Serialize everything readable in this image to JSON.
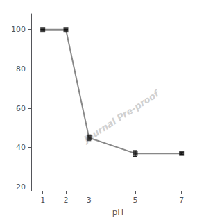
{
  "chart_data": {
    "type": "line",
    "x": [
      1,
      2,
      3,
      5,
      7
    ],
    "xlabel": "pH",
    "xlim": [
      0.5,
      8
    ],
    "xticks": [
      1,
      2,
      3,
      5,
      7
    ],
    "ylim": [
      18,
      108
    ],
    "yticks": [
      20,
      40,
      60,
      80,
      100
    ],
    "grid": false,
    "series": [
      {
        "type": "line",
        "color": "#888888",
        "values": [
          100,
          100,
          45,
          37,
          37
        ]
      },
      {
        "type": "scatter",
        "color": "#111111",
        "marker": "square",
        "values": [
          100,
          100,
          45,
          37,
          37
        ],
        "yerr": [
          0,
          0,
          1.5,
          1.5,
          0.5
        ]
      }
    ],
    "annotations": [
      {
        "text": "Journal Pre-proof",
        "color": "#d0d0d0"
      }
    ]
  }
}
